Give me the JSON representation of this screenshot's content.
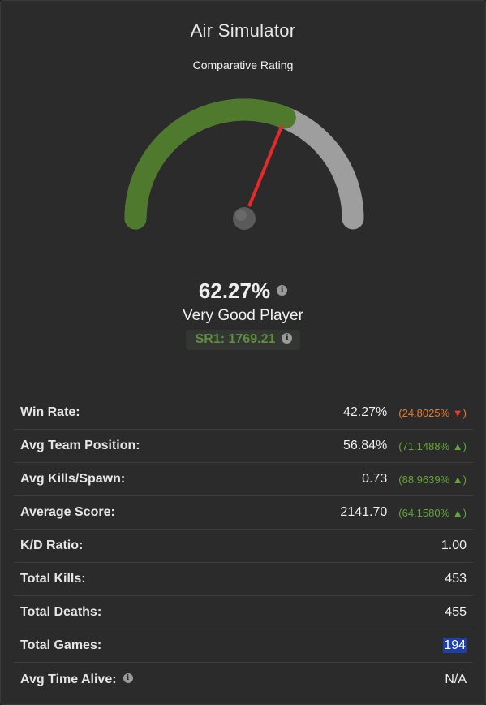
{
  "header": {
    "title": "Air Simulator",
    "subtitle": "Comparative Rating"
  },
  "gauge": {
    "fraction": 0.6227,
    "fill_color": "#4f7a2e",
    "track_color": "#9e9e9e",
    "needle_color": "#e52a2a"
  },
  "rating": {
    "percent": "62.27%",
    "rank": "Very Good Player",
    "sr": "SR1: 1769.21"
  },
  "stats": [
    {
      "label": "Win Rate:",
      "value": "42.27%",
      "delta": "(24.8025%",
      "trend": "down",
      "arrow": "▼",
      "close": ")"
    },
    {
      "label": "Avg Team Position:",
      "value": "56.84%",
      "delta": "(71.1488%",
      "trend": "up",
      "arrow": "▲",
      "close": ")"
    },
    {
      "label": "Avg Kills/Spawn:",
      "value": "0.73",
      "delta": "(88.9639%",
      "trend": "up",
      "arrow": "▲",
      "close": ")"
    },
    {
      "label": "Average Score:",
      "value": "2141.70",
      "delta": "(64.1580%",
      "trend": "up",
      "arrow": "▲",
      "close": ")"
    },
    {
      "label": "K/D Ratio:",
      "value": "1.00"
    },
    {
      "label": "Total Kills:",
      "value": "453"
    },
    {
      "label": "Total Deaths:",
      "value": "455"
    },
    {
      "label": "Total Games:",
      "value": "194",
      "selected": true
    },
    {
      "label": "Avg Time Alive:",
      "value": "N/A",
      "info": true
    }
  ]
}
